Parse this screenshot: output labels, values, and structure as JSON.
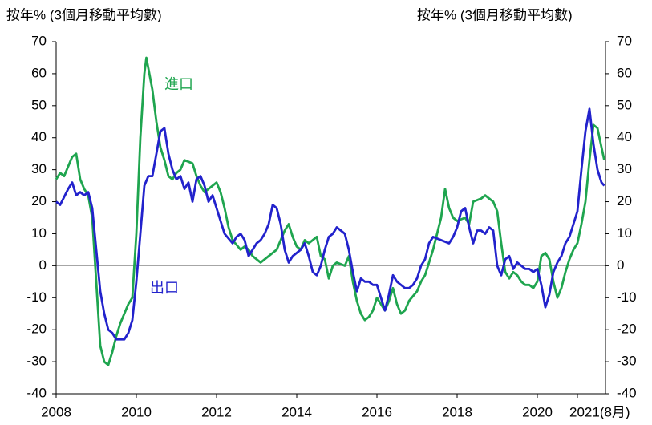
{
  "chart_data": {
    "type": "line",
    "y_title": "按年% (3個月移動平均數)",
    "y2_title": "按年% (3個月移動平均數)",
    "xlim": [
      2008,
      2021.7
    ],
    "xticks": [
      2008,
      2010,
      2012,
      2014,
      2016,
      2018,
      2020,
      {
        "value": 2021,
        "label": "2021(8月)"
      }
    ],
    "ylim": [
      -40,
      70
    ],
    "yticks": [
      -40,
      -30,
      -20,
      -10,
      0,
      10,
      20,
      30,
      40,
      50,
      60,
      70
    ],
    "y2lim": [
      -40,
      70
    ],
    "y2ticks": [
      -40,
      -30,
      -20,
      -10,
      0,
      10,
      20,
      30,
      40,
      50,
      60,
      70
    ],
    "series": [
      {
        "name": "進口",
        "color": "#1fa54f",
        "x": [
          2008.0,
          2008.1,
          2008.2,
          2008.3,
          2008.4,
          2008.5,
          2008.6,
          2008.7,
          2008.8,
          2008.9,
          2009.0,
          2009.1,
          2009.2,
          2009.3,
          2009.4,
          2009.5,
          2009.6,
          2009.7,
          2009.8,
          2009.9,
          2010.0,
          2010.1,
          2010.2,
          2010.25,
          2010.4,
          2010.5,
          2010.6,
          2010.7,
          2010.8,
          2010.9,
          2011.0,
          2011.1,
          2011.2,
          2011.4,
          2011.5,
          2011.6,
          2011.7,
          2011.8,
          2011.9,
          2012.0,
          2012.1,
          2012.2,
          2012.3,
          2012.4,
          2012.6,
          2012.7,
          2012.8,
          2012.9,
          2013.0,
          2013.1,
          2013.3,
          2013.5,
          2013.6,
          2013.7,
          2013.8,
          2013.9,
          2014.0,
          2014.1,
          2014.2,
          2014.3,
          2014.4,
          2014.5,
          2014.6,
          2014.7,
          2014.8,
          2014.9,
          2015.0,
          2015.2,
          2015.3,
          2015.4,
          2015.5,
          2015.6,
          2015.7,
          2015.8,
          2015.9,
          2016.0,
          2016.1,
          2016.2,
          2016.3,
          2016.4,
          2016.5,
          2016.6,
          2016.7,
          2016.8,
          2017.0,
          2017.1,
          2017.2,
          2017.4,
          2017.5,
          2017.6,
          2017.7,
          2017.8,
          2017.9,
          2018.0,
          2018.2,
          2018.3,
          2018.4,
          2018.6,
          2018.7,
          2018.8,
          2018.9,
          2019.0,
          2019.1,
          2019.2,
          2019.3,
          2019.4,
          2019.5,
          2019.6,
          2019.7,
          2019.8,
          2019.9,
          2020.0,
          2020.1,
          2020.2,
          2020.3,
          2020.4,
          2020.5,
          2020.6,
          2020.7,
          2020.8,
          2020.9,
          2021.0,
          2021.1,
          2021.2,
          2021.3,
          2021.4,
          2021.5,
          2021.6,
          2021.67
        ],
        "values": [
          27,
          29,
          28,
          31,
          34,
          35,
          27,
          24,
          22,
          15,
          -5,
          -25,
          -30,
          -31,
          -27,
          -22,
          -18,
          -15,
          -12,
          -10,
          10,
          40,
          60,
          65,
          55,
          45,
          37,
          33,
          28,
          27,
          29,
          30,
          33,
          32,
          28,
          25,
          23,
          24,
          25,
          26,
          23,
          18,
          12,
          8,
          5,
          6,
          5,
          3,
          2,
          1,
          3,
          5,
          8,
          11,
          13,
          9,
          6,
          5,
          8,
          7,
          8,
          9,
          3,
          2,
          -4,
          0,
          1,
          0,
          3,
          -5,
          -11,
          -15,
          -17,
          -16,
          -14,
          -10,
          -12,
          -14,
          -11,
          -7,
          -12,
          -15,
          -14,
          -11,
          -8,
          -5,
          -3,
          5,
          10,
          15,
          24,
          18,
          15,
          14,
          15,
          13,
          20,
          21,
          22,
          21,
          20,
          17,
          7,
          -2,
          -4,
          -2,
          -3,
          -5,
          -6,
          -6,
          -7,
          -5,
          3,
          4,
          2,
          -5,
          -10,
          -7,
          -2,
          2,
          5,
          7,
          13,
          20,
          33,
          44,
          43,
          37,
          33
        ]
      },
      {
        "name": "出口",
        "color": "#2222cc",
        "x": [
          2008.0,
          2008.1,
          2008.3,
          2008.4,
          2008.5,
          2008.6,
          2008.7,
          2008.8,
          2008.9,
          2009.0,
          2009.1,
          2009.2,
          2009.3,
          2009.4,
          2009.5,
          2009.7,
          2009.8,
          2009.9,
          2010.0,
          2010.1,
          2010.2,
          2010.3,
          2010.4,
          2010.5,
          2010.6,
          2010.7,
          2010.8,
          2010.9,
          2011.0,
          2011.1,
          2011.2,
          2011.3,
          2011.4,
          2011.5,
          2011.6,
          2011.7,
          2011.8,
          2011.9,
          2012.0,
          2012.2,
          2012.4,
          2012.5,
          2012.6,
          2012.7,
          2012.8,
          2012.9,
          2013.0,
          2013.1,
          2013.2,
          2013.3,
          2013.4,
          2013.5,
          2013.6,
          2013.7,
          2013.8,
          2013.9,
          2014.0,
          2014.1,
          2014.2,
          2014.3,
          2014.4,
          2014.5,
          2014.6,
          2014.7,
          2014.8,
          2014.9,
          2015.0,
          2015.1,
          2015.2,
          2015.3,
          2015.4,
          2015.5,
          2015.6,
          2015.7,
          2015.8,
          2015.9,
          2016.0,
          2016.1,
          2016.2,
          2016.3,
          2016.4,
          2016.5,
          2016.6,
          2016.7,
          2016.8,
          2016.9,
          2017.0,
          2017.1,
          2017.2,
          2017.3,
          2017.4,
          2017.6,
          2017.8,
          2017.9,
          2018.0,
          2018.1,
          2018.2,
          2018.3,
          2018.4,
          2018.5,
          2018.6,
          2018.7,
          2018.8,
          2018.9,
          2019.0,
          2019.1,
          2019.2,
          2019.3,
          2019.4,
          2019.5,
          2019.6,
          2019.7,
          2019.8,
          2019.9,
          2020.0,
          2020.1,
          2020.2,
          2020.3,
          2020.4,
          2020.5,
          2020.6,
          2020.7,
          2020.8,
          2020.9,
          2021.0,
          2021.1,
          2021.2,
          2021.3,
          2021.4,
          2021.5,
          2021.6,
          2021.67
        ],
        "values": [
          20,
          19,
          24,
          26,
          22,
          23,
          22,
          23,
          18,
          5,
          -8,
          -15,
          -20,
          -21,
          -23,
          -23,
          -21,
          -17,
          -5,
          10,
          25,
          28,
          28,
          35,
          42,
          43,
          35,
          30,
          27,
          28,
          24,
          26,
          20,
          27,
          28,
          25,
          20,
          22,
          18,
          10,
          7,
          9,
          10,
          8,
          3,
          5,
          7,
          8,
          10,
          13,
          19,
          18,
          13,
          5,
          1,
          3,
          4,
          5,
          7,
          3,
          -2,
          -3,
          0,
          5,
          9,
          10,
          12,
          11,
          10,
          5,
          -2,
          -8,
          -4,
          -5,
          -5,
          -6,
          -6,
          -10,
          -14,
          -9,
          -3,
          -5,
          -6,
          -7,
          -7,
          -6,
          -4,
          0,
          2,
          7,
          9,
          8,
          7,
          9,
          12,
          17,
          18,
          12,
          7,
          11,
          11,
          10,
          12,
          11,
          0,
          -3,
          2,
          3,
          -1,
          1,
          0,
          -1,
          -1,
          -2,
          -1,
          -6,
          -13,
          -9,
          -2,
          1,
          3,
          7,
          9,
          13,
          17,
          30,
          42,
          49,
          38,
          30,
          26,
          25
        ]
      }
    ]
  }
}
